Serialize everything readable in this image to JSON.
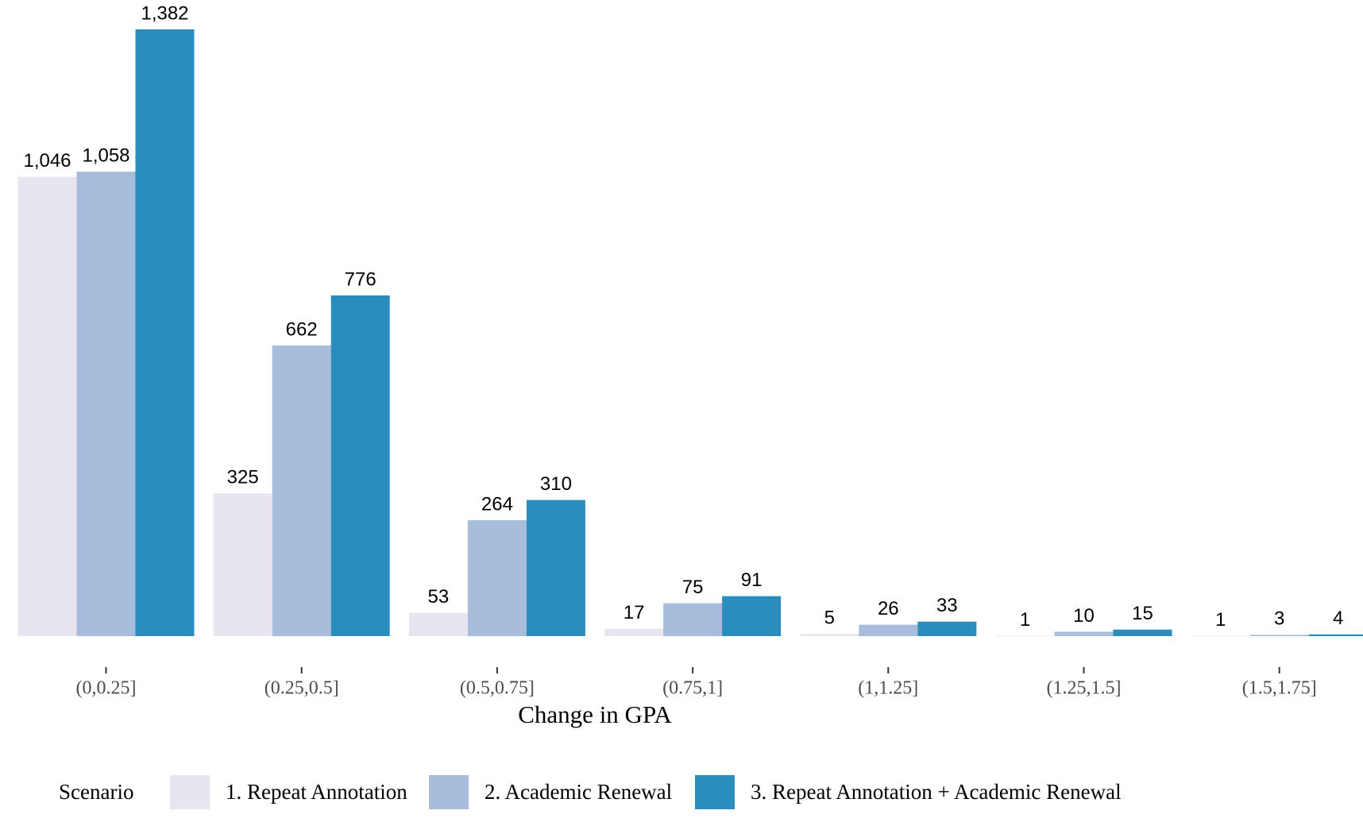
{
  "chart_data": {
    "type": "bar",
    "x_label": "Change in GPA",
    "categories": [
      "(0,0.25]",
      "(0.25,0.5]",
      "(0.5,0.75]",
      "(0.75,1]",
      "(1,1.25]",
      "(1.25,1.5]",
      "(1.5,1.75]"
    ],
    "legend_title": "Scenario",
    "series": [
      {
        "name": "1. Repeat Annotation",
        "color": "#e8e4f0",
        "values": [
          1046,
          325,
          53,
          17,
          5,
          1,
          1
        ],
        "value_labels": [
          "1,046",
          "325",
          "53",
          "17",
          "5",
          "1",
          "1"
        ]
      },
      {
        "name": "2. Academic Renewal",
        "color": "#a8bddb",
        "values": [
          1058,
          662,
          264,
          75,
          26,
          10,
          3
        ],
        "value_labels": [
          "1,058",
          "662",
          "264",
          "75",
          "26",
          "10",
          "3"
        ]
      },
      {
        "name": "3. Repeat Annotation + Academic Renewal",
        "color": "#2b8cbe",
        "values": [
          1382,
          776,
          310,
          91,
          33,
          15,
          4
        ],
        "value_labels": [
          "1,382",
          "776",
          "310",
          "91",
          "33",
          "15",
          "4"
        ]
      }
    ]
  }
}
